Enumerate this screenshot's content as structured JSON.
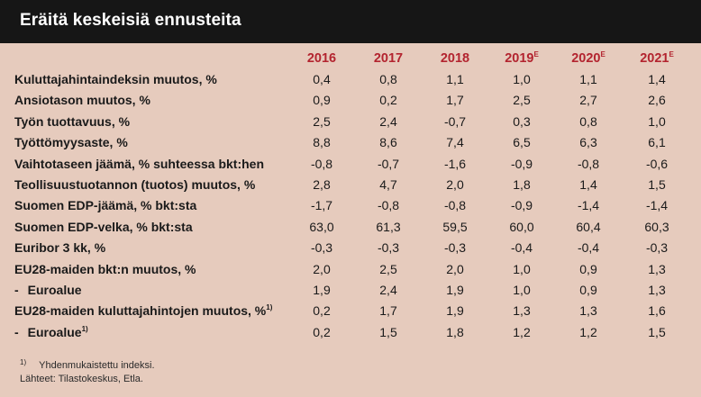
{
  "title": "Eräitä keskeisiä ennusteita",
  "columns": [
    {
      "year": "2016",
      "sup": ""
    },
    {
      "year": "2017",
      "sup": ""
    },
    {
      "year": "2018",
      "sup": ""
    },
    {
      "year": "2019",
      "sup": "E"
    },
    {
      "year": "2020",
      "sup": "E"
    },
    {
      "year": "2021",
      "sup": "E"
    }
  ],
  "rows": [
    {
      "label": "Kuluttajahintaindeksin muutos, %",
      "values": [
        "0,4",
        "0,8",
        "1,1",
        "1,0",
        "1,1",
        "1,4"
      ]
    },
    {
      "label": "Ansiotason muutos, %",
      "values": [
        "0,9",
        "0,2",
        "1,7",
        "2,5",
        "2,7",
        "2,6"
      ]
    },
    {
      "label": "Työn tuottavuus, %",
      "values": [
        "2,5",
        "2,4",
        "-0,7",
        "0,3",
        "0,8",
        "1,0"
      ]
    },
    {
      "label": "Työttömyysaste, %",
      "values": [
        "8,8",
        "8,6",
        "7,4",
        "6,5",
        "6,3",
        "6,1"
      ]
    },
    {
      "label": "Vaihtotaseen jäämä, % suhteessa bkt:hen",
      "values": [
        "-0,8",
        "-0,7",
        "-1,6",
        "-0,9",
        "-0,8",
        "-0,6"
      ]
    },
    {
      "label": "Teollisuustuotannon (tuotos) muutos, %",
      "values": [
        "2,8",
        "4,7",
        "2,0",
        "1,8",
        "1,4",
        "1,5"
      ]
    },
    {
      "label": "Suomen EDP-jäämä, % bkt:sta",
      "values": [
        "-1,7",
        "-0,8",
        "-0,8",
        "-0,9",
        "-1,4",
        "-1,4"
      ]
    },
    {
      "label": "Suomen EDP-velka, % bkt:sta",
      "values": [
        "63,0",
        "61,3",
        "59,5",
        "60,0",
        "60,4",
        "60,3"
      ]
    },
    {
      "label": "Euribor 3 kk, %",
      "values": [
        "-0,3",
        "-0,3",
        "-0,3",
        "-0,4",
        "-0,4",
        "-0,3"
      ]
    },
    {
      "label": "EU28-maiden bkt:n muutos, %",
      "values": [
        "2,0",
        "2,5",
        "2,0",
        "1,0",
        "0,9",
        "1,3"
      ]
    },
    {
      "label": "Euroalue",
      "sub": true,
      "values": [
        "1,9",
        "2,4",
        "1,9",
        "1,0",
        "0,9",
        "1,3"
      ]
    },
    {
      "label": "EU28-maiden kuluttajahintojen muutos, %",
      "sup": "1)",
      "values": [
        "0,2",
        "1,7",
        "1,9",
        "1,3",
        "1,3",
        "1,6"
      ]
    },
    {
      "label": "Euroalue",
      "sub": true,
      "sup": "1)",
      "values": [
        "0,2",
        "1,5",
        "1,8",
        "1,2",
        "1,2",
        "1,5"
      ]
    }
  ],
  "footnote": {
    "marker": "1)",
    "text": "Yhdenmukaistettu indeksi."
  },
  "sources": "Lähteet: Tilastokeskus, Etla.",
  "colors": {
    "header_year": "#b3242f",
    "background": "#e6cbbd",
    "title_bar": "#161616"
  }
}
